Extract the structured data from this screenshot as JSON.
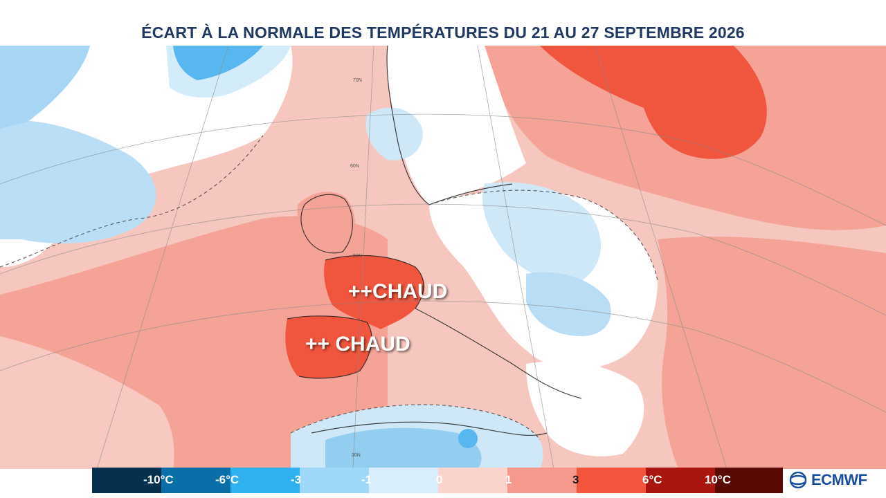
{
  "title": "ÉCART À LA NORMALE DES TEMPÉRATURES DU 21 AU 27 SEPTEMBRE 2026",
  "callouts": {
    "france": "++CHAUD",
    "iberia": "++ CHAUD"
  },
  "legend": {
    "ticks": [
      "-10°C",
      "-6°C",
      "-3",
      "-1",
      "0",
      "1",
      "3",
      "6°C",
      "10°C"
    ],
    "colors": [
      "#07304f",
      "#0a6ea8",
      "#2fb0f0",
      "#9fd8f7",
      "#d8eefb",
      "#fbd3cd",
      "#f4998c",
      "#f2553c",
      "#a8160f",
      "#5a0a05"
    ]
  },
  "map_colors": {
    "ocean_warm": "#f5c2b8",
    "warm": "#f4a396",
    "hot": "#f0553d",
    "neutral": "#ffffff",
    "cool": "#cfe8f8",
    "cold": "#93cdf0"
  },
  "latitude_labels": [
    "70N",
    "60N",
    "50N",
    "30N"
  ],
  "brand": "ECMWF"
}
